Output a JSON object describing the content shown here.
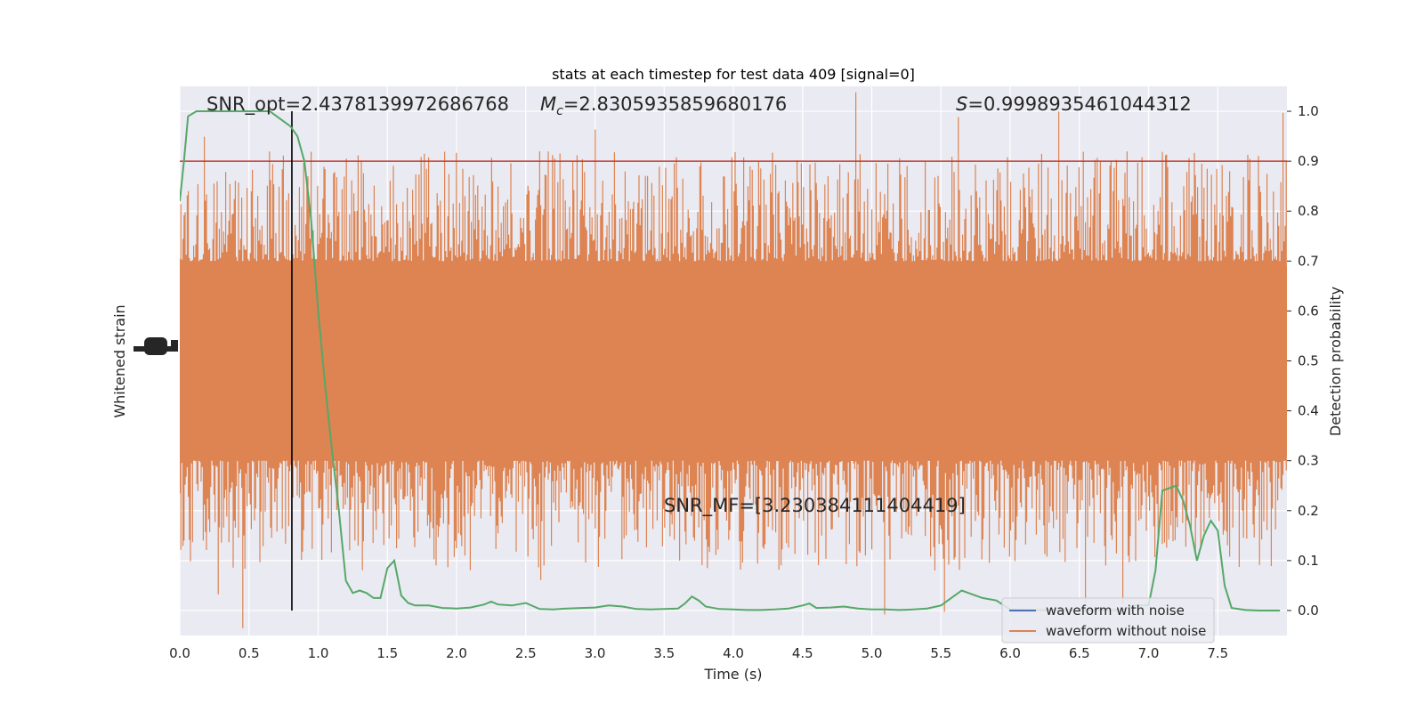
{
  "chart_data": {
    "type": "line",
    "title": "stats at each timestep for test data 409 [signal=0]",
    "xlabel": "Time (s)",
    "ylabel_left": "Whitened strain",
    "ylabel_right": "Detection probability",
    "xlim": [
      0.0,
      8.0
    ],
    "ylim_right": [
      -0.05,
      1.05
    ],
    "x_ticks": [
      "0.0",
      "0.5",
      "1.0",
      "1.5",
      "2.0",
      "2.5",
      "3.0",
      "3.5",
      "4.0",
      "4.5",
      "5.0",
      "5.5",
      "6.0",
      "6.5",
      "7.0",
      "7.5"
    ],
    "y_ticks_right": [
      "0.0",
      "0.1",
      "0.2",
      "0.3",
      "0.4",
      "0.5",
      "0.6",
      "0.7",
      "0.8",
      "0.9",
      "1.0"
    ],
    "grid": true,
    "legend_position": "lower-right",
    "annotations": {
      "snr_opt": "SNR_opt=2.4378139972686768",
      "mc_prefix": "M",
      "mc_sub": "c",
      "mc_value": "=2.8305935859680176",
      "s_prefix": "S",
      "s_value": "=0.9998935461044312",
      "snr_mf": "SNR_MF=[3.230384111404419]"
    },
    "threshold": {
      "value": 0.9,
      "color": "#c0392b"
    },
    "marker_time": 0.81,
    "series": [
      {
        "name": "waveform with noise",
        "color": "#4c72b0"
      },
      {
        "name": "waveform without noise",
        "color": "#dd8452"
      },
      {
        "color": "#55a868",
        "x": [
          0.0,
          0.03,
          0.06,
          0.12,
          0.2,
          0.3,
          0.4,
          0.5,
          0.6,
          0.65,
          0.7,
          0.75,
          0.8,
          0.85,
          0.9,
          0.95,
          1.0,
          1.05,
          1.1,
          1.15,
          1.2,
          1.25,
          1.3,
          1.35,
          1.4,
          1.45,
          1.5,
          1.55,
          1.6,
          1.65,
          1.7,
          1.8,
          1.9,
          2.0,
          2.1,
          2.2,
          2.25,
          2.3,
          2.4,
          2.5,
          2.6,
          2.7,
          2.8,
          2.9,
          3.0,
          3.1,
          3.2,
          3.3,
          3.4,
          3.5,
          3.6,
          3.65,
          3.7,
          3.75,
          3.8,
          3.9,
          4.0,
          4.1,
          4.2,
          4.3,
          4.4,
          4.5,
          4.55,
          4.6,
          4.7,
          4.8,
          4.9,
          5.0,
          5.1,
          5.2,
          5.3,
          5.4,
          5.5,
          5.55,
          5.6,
          5.65,
          5.7,
          5.8,
          5.9,
          6.0,
          6.2,
          6.4,
          6.6,
          6.8,
          6.9,
          7.0,
          7.05,
          7.1,
          7.15,
          7.2,
          7.25,
          7.3,
          7.35,
          7.4,
          7.45,
          7.5,
          7.55,
          7.6,
          7.7,
          7.8,
          7.95
        ],
        "values": [
          0.82,
          0.9,
          0.99,
          1.0,
          1.0,
          1.0,
          1.0,
          1.0,
          1.0,
          1.0,
          0.99,
          0.98,
          0.97,
          0.95,
          0.9,
          0.78,
          0.6,
          0.45,
          0.32,
          0.2,
          0.06,
          0.035,
          0.04,
          0.035,
          0.025,
          0.025,
          0.085,
          0.1,
          0.03,
          0.015,
          0.01,
          0.01,
          0.005,
          0.004,
          0.006,
          0.012,
          0.018,
          0.012,
          0.01,
          0.015,
          0.003,
          0.002,
          0.004,
          0.005,
          0.006,
          0.01,
          0.008,
          0.003,
          0.002,
          0.003,
          0.004,
          0.014,
          0.028,
          0.02,
          0.008,
          0.003,
          0.002,
          0.001,
          0.001,
          0.002,
          0.004,
          0.01,
          0.014,
          0.005,
          0.006,
          0.008,
          0.004,
          0.002,
          0.002,
          0.001,
          0.002,
          0.004,
          0.01,
          0.02,
          0.03,
          0.04,
          0.035,
          0.025,
          0.02,
          0.002,
          0.001,
          0.001,
          0.001,
          0.001,
          0.01,
          0.01,
          0.08,
          0.24,
          0.245,
          0.25,
          0.22,
          0.17,
          0.1,
          0.15,
          0.18,
          0.16,
          0.05,
          0.005,
          0.001,
          0.0,
          0.0
        ]
      }
    ]
  }
}
